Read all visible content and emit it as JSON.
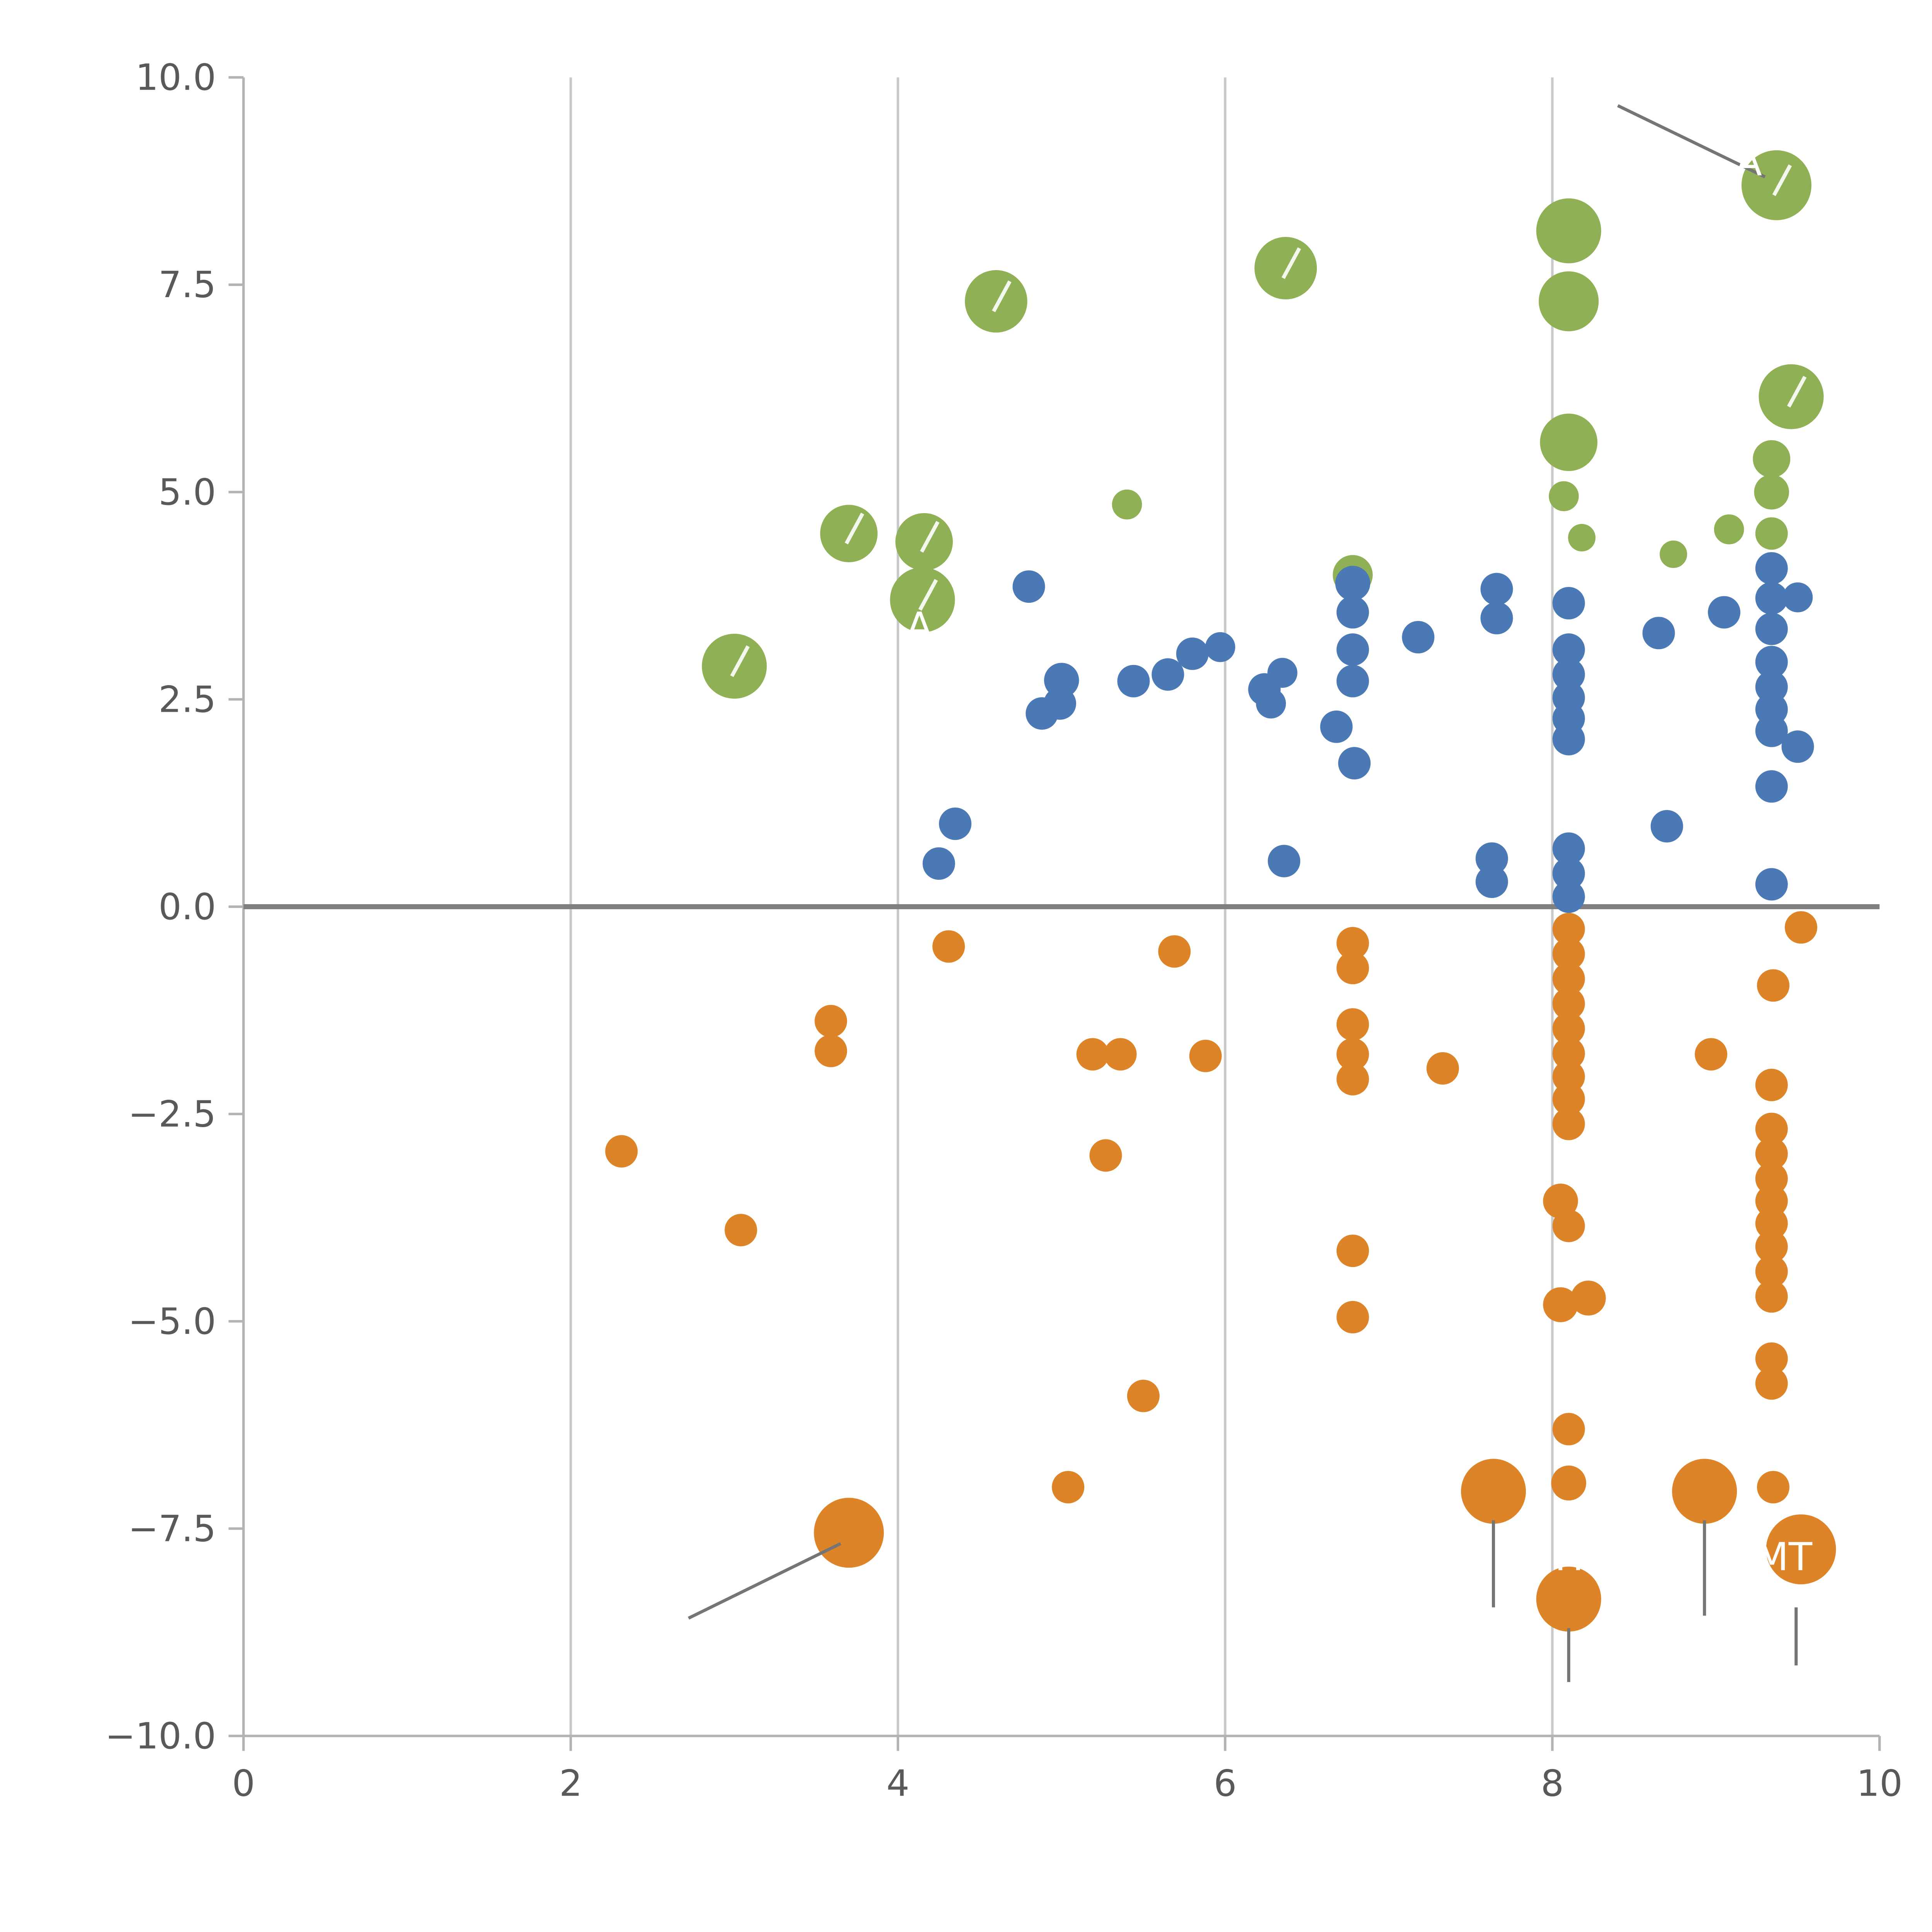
{
  "chart_data": {
    "type": "scatter",
    "title": "",
    "xlabel": "",
    "ylabel": "",
    "xlim": [
      0,
      10
    ],
    "ylim": [
      -10,
      10
    ],
    "x_ticks": [
      0,
      2,
      4,
      6,
      8,
      10
    ],
    "x_tick_labels": [
      "0",
      "2",
      "4",
      "6",
      "8",
      "10"
    ],
    "y_ticks": [
      10.0,
      7.5,
      5.0,
      2.5,
      0.0,
      -2.5,
      -5.0,
      -7.5,
      -10.0
    ],
    "y_tick_labels": [
      "10.0",
      "7.5",
      "5.0",
      "2.5",
      "0.0",
      "−2.5",
      "−5.0",
      "−7.5",
      "−10.0"
    ],
    "gridlines_x": [
      2,
      4,
      6,
      8
    ],
    "zero_line_y": 0,
    "grid_on": true,
    "legend": "none",
    "colors": {
      "green": "#90b055",
      "blue": "#4a79b5",
      "orange": "#dd8428",
      "grid": "#c9c9c9",
      "axis": "#b3b3b3",
      "zero_line": "#7f7f7f",
      "tick_text": "#595959",
      "annotation_line": "#757575",
      "annotation_text": "#ffffff"
    },
    "series": [
      {
        "name": "green",
        "color_key": "green",
        "points": [
          [
            9.37,
            8.7,
            28
          ],
          [
            8.1,
            8.15,
            26
          ],
          [
            8.1,
            7.3,
            24
          ],
          [
            6.37,
            7.7,
            25
          ],
          [
            4.6,
            7.3,
            25
          ],
          [
            9.46,
            6.15,
            26
          ],
          [
            8.1,
            5.6,
            23
          ],
          [
            9.34,
            5.4,
            15
          ],
          [
            9.34,
            5.0,
            14
          ],
          [
            8.07,
            4.95,
            12
          ],
          [
            5.4,
            4.85,
            12
          ],
          [
            3.7,
            4.5,
            23
          ],
          [
            4.16,
            4.4,
            23
          ],
          [
            9.08,
            4.55,
            12
          ],
          [
            8.74,
            4.25,
            11
          ],
          [
            8.18,
            4.45,
            11
          ],
          [
            9.34,
            4.5,
            13
          ],
          [
            4.15,
            3.7,
            26
          ],
          [
            6.78,
            4.0,
            16
          ],
          [
            3.0,
            2.9,
            26
          ]
        ]
      },
      {
        "name": "blue",
        "color_key": "blue",
        "points": [
          [
            4.8,
            3.86,
            13
          ],
          [
            7.66,
            3.83,
            13
          ],
          [
            7.66,
            3.48,
            13
          ],
          [
            8.1,
            3.66,
            13
          ],
          [
            9.34,
            4.08,
            13
          ],
          [
            9.34,
            3.72,
            13
          ],
          [
            9.5,
            3.73,
            12
          ],
          [
            9.34,
            3.35,
            13
          ],
          [
            8.65,
            3.3,
            13
          ],
          [
            9.05,
            3.55,
            13
          ],
          [
            6.78,
            3.9,
            14
          ],
          [
            6.78,
            3.55,
            13
          ],
          [
            6.78,
            3.1,
            13
          ],
          [
            7.18,
            3.25,
            13
          ],
          [
            5.8,
            3.05,
            13
          ],
          [
            5.97,
            3.13,
            12
          ],
          [
            5.65,
            2.8,
            13
          ],
          [
            5.44,
            2.72,
            13
          ],
          [
            5.0,
            2.73,
            14
          ],
          [
            4.99,
            2.45,
            13
          ],
          [
            4.88,
            2.33,
            13
          ],
          [
            6.24,
            2.62,
            13
          ],
          [
            6.35,
            2.82,
            12
          ],
          [
            6.28,
            2.45,
            12
          ],
          [
            6.78,
            2.72,
            13
          ],
          [
            8.1,
            3.1,
            13
          ],
          [
            8.1,
            2.8,
            13
          ],
          [
            8.1,
            2.52,
            13
          ],
          [
            8.1,
            2.27,
            13
          ],
          [
            8.1,
            2.02,
            13
          ],
          [
            9.34,
            2.95,
            13
          ],
          [
            9.34,
            2.65,
            13
          ],
          [
            9.34,
            2.38,
            13
          ],
          [
            9.34,
            2.12,
            13
          ],
          [
            9.5,
            1.93,
            13
          ],
          [
            9.34,
            1.45,
            13
          ],
          [
            8.7,
            0.97,
            13
          ],
          [
            6.68,
            2.17,
            13
          ],
          [
            6.79,
            1.73,
            13
          ],
          [
            4.35,
            1.0,
            13
          ],
          [
            4.25,
            0.52,
            13
          ],
          [
            6.36,
            0.55,
            13
          ],
          [
            7.63,
            0.58,
            13
          ],
          [
            7.63,
            0.3,
            13
          ],
          [
            8.1,
            0.7,
            13
          ],
          [
            8.1,
            0.4,
            13
          ],
          [
            8.1,
            0.12,
            13
          ],
          [
            9.34,
            0.27,
            13
          ]
        ]
      },
      {
        "name": "orange",
        "color_key": "orange",
        "points": [
          [
            4.31,
            -0.48,
            13
          ],
          [
            5.69,
            -0.54,
            13
          ],
          [
            6.78,
            -0.44,
            13
          ],
          [
            6.78,
            -0.74,
            13
          ],
          [
            3.59,
            -1.38,
            13
          ],
          [
            3.59,
            -1.74,
            13
          ],
          [
            5.19,
            -1.78,
            13
          ],
          [
            5.36,
            -1.78,
            13
          ],
          [
            5.88,
            -1.8,
            13
          ],
          [
            6.78,
            -1.42,
            13
          ],
          [
            6.78,
            -1.78,
            13
          ],
          [
            6.78,
            -2.08,
            13
          ],
          [
            7.33,
            -1.95,
            13
          ],
          [
            8.97,
            -1.78,
            13
          ],
          [
            9.35,
            -0.95,
            13
          ],
          [
            9.52,
            -0.25,
            13
          ],
          [
            2.31,
            -2.95,
            13
          ],
          [
            3.04,
            -3.9,
            13
          ],
          [
            5.27,
            -3.0,
            13
          ],
          [
            6.78,
            -4.15,
            13
          ],
          [
            6.78,
            -4.95,
            13
          ],
          [
            5.5,
            -5.9,
            13
          ],
          [
            5.04,
            -7.0,
            13
          ],
          [
            3.7,
            -7.55,
            28
          ],
          [
            7.64,
            -7.05,
            26
          ],
          [
            8.1,
            -6.95,
            14
          ],
          [
            8.1,
            -6.3,
            13
          ],
          [
            8.93,
            -7.05,
            26
          ],
          [
            9.35,
            -7.0,
            13
          ],
          [
            9.52,
            -7.75,
            28
          ],
          [
            8.1,
            -8.35,
            26
          ],
          [
            8.05,
            -3.55,
            14
          ],
          [
            8.1,
            -3.85,
            13
          ],
          [
            8.05,
            -4.8,
            14
          ],
          [
            8.22,
            -4.72,
            14
          ],
          [
            9.34,
            -2.15,
            13
          ],
          [
            9.34,
            -2.68,
            13
          ],
          [
            9.34,
            -2.98,
            13
          ],
          [
            9.34,
            -3.28,
            13
          ],
          [
            9.34,
            -3.55,
            13
          ],
          [
            9.34,
            -3.82,
            13
          ],
          [
            9.34,
            -4.1,
            13
          ],
          [
            9.34,
            -4.4,
            13
          ],
          [
            9.34,
            -4.7,
            13
          ],
          [
            9.34,
            -5.45,
            13
          ],
          [
            9.34,
            -5.75,
            13
          ],
          [
            8.1,
            -0.27,
            13
          ],
          [
            8.1,
            -0.57,
            13
          ],
          [
            8.1,
            -0.87,
            13
          ],
          [
            8.1,
            -1.17,
            13
          ],
          [
            8.1,
            -1.47,
            13
          ],
          [
            8.1,
            -1.77,
            13
          ],
          [
            8.1,
            -2.05,
            13
          ],
          [
            8.1,
            -2.32,
            13
          ],
          [
            8.1,
            -2.62,
            13
          ]
        ]
      }
    ],
    "annotations": [
      {
        "text": "A",
        "x": 9.12,
        "y": 8.82
      },
      {
        "text": "A",
        "x": 4.05,
        "y": 3.22
      },
      {
        "text": "MH",
        "x": 7.81,
        "y": -8.0
      },
      {
        "text": "MT",
        "x": 9.24,
        "y": -8.0
      }
    ],
    "leader_lines": [
      {
        "x1": 8.4,
        "y1": 9.66,
        "x2": 9.3,
        "y2": 8.8
      },
      {
        "x1": 2.72,
        "y1": -8.58,
        "x2": 3.65,
        "y2": -7.68
      },
      {
        "x1": 7.64,
        "y1": -7.4,
        "x2": 7.64,
        "y2": -8.45
      },
      {
        "x1": 8.1,
        "y1": -8.7,
        "x2": 8.1,
        "y2": -9.35
      },
      {
        "x1": 8.93,
        "y1": -7.4,
        "x2": 8.93,
        "y2": -8.55
      },
      {
        "x1": 9.49,
        "y1": -8.45,
        "x2": 9.49,
        "y2": -9.15
      }
    ],
    "highlight_marks": [
      [
        9.37,
        8.7
      ],
      [
        6.37,
        7.7
      ],
      [
        4.6,
        7.3
      ],
      [
        9.46,
        6.15
      ],
      [
        3.7,
        4.5
      ],
      [
        4.16,
        4.4
      ],
      [
        4.15,
        3.7
      ],
      [
        3.0,
        2.9
      ]
    ]
  }
}
